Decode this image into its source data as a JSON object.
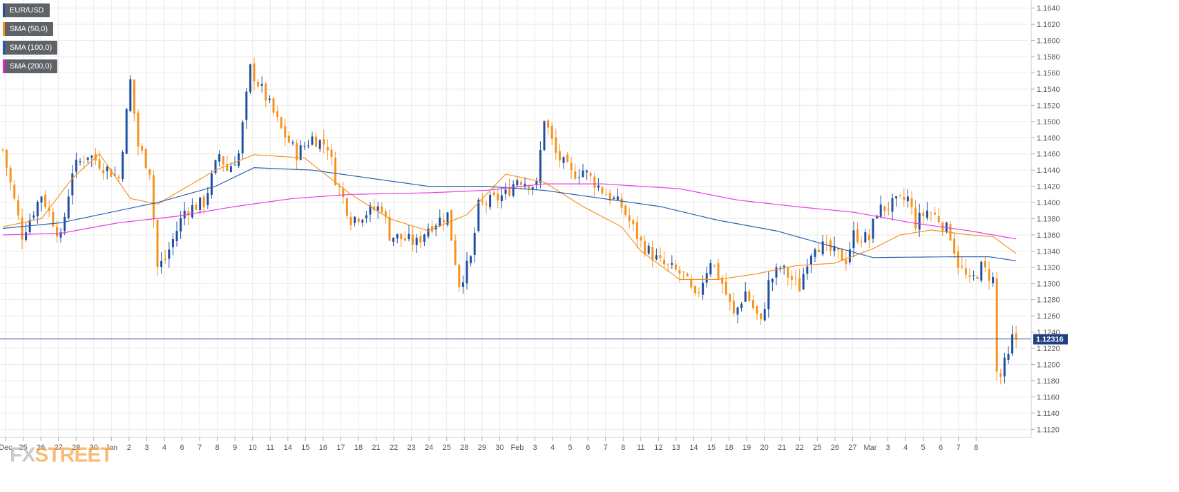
{
  "legend": [
    {
      "label": "EUR/USD",
      "color": "#1e4f99"
    },
    {
      "label": "SMA (50,0)",
      "color": "#f7931e"
    },
    {
      "label": "SMA (100,0)",
      "color": "#1e5bb8"
    },
    {
      "label": "SMA (200,0)",
      "color": "#e61ee6"
    }
  ],
  "watermark": {
    "fx": "FX",
    "rest": "STREET"
  },
  "current_price_label": "1.12316",
  "colors": {
    "bull": "#1f4fa3",
    "bear": "#f5931f",
    "sma50": "#f7931e",
    "sma100": "#2a62b0",
    "sma200": "#e63ee6",
    "price_line": "#1e3f80",
    "grid": "#e9e9e9"
  },
  "chart_data": {
    "type": "candlestick",
    "symbol": "EUR/USD",
    "ylim": [
      1.111,
      1.165
    ],
    "yticks": [
      "1.1120",
      "1.1140",
      "1.1160",
      "1.1180",
      "1.1200",
      "1.1220",
      "1.1240",
      "1.1260",
      "1.1280",
      "1.1300",
      "1.1320",
      "1.1340",
      "1.1360",
      "1.1380",
      "1.1400",
      "1.1420",
      "1.1440",
      "1.1460",
      "1.1480",
      "1.1500",
      "1.1520",
      "1.1540",
      "1.1560",
      "1.1580",
      "1.1600",
      "1.1620",
      "1.1640"
    ],
    "xticks": [
      "Dec",
      "25",
      "26",
      "27",
      "28",
      "30",
      "Jan",
      "2",
      "3",
      "4",
      "6",
      "7",
      "8",
      "9",
      "10",
      "11",
      "14",
      "15",
      "16",
      "17",
      "18",
      "21",
      "22",
      "23",
      "24",
      "25",
      "28",
      "29",
      "30",
      "Feb",
      "3",
      "4",
      "5",
      "6",
      "7",
      "8",
      "11",
      "12",
      "13",
      "14",
      "15",
      "18",
      "19",
      "20",
      "21",
      "22",
      "25",
      "26",
      "27",
      "Mar",
      "3",
      "4",
      "5",
      "6",
      "7",
      "8"
    ],
    "current_price": 1.12316,
    "series": [
      {
        "name": "SMA (50,0)",
        "anchors": [
          [
            0,
            1.137
          ],
          [
            10,
            1.138
          ],
          [
            18,
            1.143
          ],
          [
            25,
            1.146
          ],
          [
            33,
            1.1405
          ],
          [
            40,
            1.1398
          ],
          [
            55,
            1.144
          ],
          [
            65,
            1.1459
          ],
          [
            78,
            1.1455
          ],
          [
            90,
            1.141
          ],
          [
            100,
            1.138
          ],
          [
            110,
            1.1365
          ],
          [
            120,
            1.1385
          ],
          [
            130,
            1.1435
          ],
          [
            140,
            1.1425
          ],
          [
            150,
            1.1395
          ],
          [
            160,
            1.137
          ],
          [
            165,
            1.134
          ],
          [
            175,
            1.1305
          ],
          [
            185,
            1.1305
          ],
          [
            195,
            1.1312
          ],
          [
            205,
            1.1322
          ],
          [
            215,
            1.1325
          ],
          [
            225,
            1.1343
          ],
          [
            232,
            1.136
          ],
          [
            240,
            1.1366
          ],
          [
            250,
            1.136
          ],
          [
            256,
            1.1358
          ],
          [
            262,
            1.1337
          ]
        ]
      },
      {
        "name": "SMA (100,0)",
        "anchors": [
          [
            0,
            1.1368
          ],
          [
            15,
            1.1375
          ],
          [
            30,
            1.139
          ],
          [
            40,
            1.14
          ],
          [
            55,
            1.142
          ],
          [
            65,
            1.1443
          ],
          [
            80,
            1.144
          ],
          [
            95,
            1.143
          ],
          [
            110,
            1.142
          ],
          [
            125,
            1.142
          ],
          [
            140,
            1.1415
          ],
          [
            155,
            1.1405
          ],
          [
            170,
            1.1395
          ],
          [
            185,
            1.1378
          ],
          [
            200,
            1.1365
          ],
          [
            215,
            1.1345
          ],
          [
            225,
            1.1332
          ],
          [
            245,
            1.1333
          ],
          [
            255,
            1.1333
          ],
          [
            262,
            1.1328
          ]
        ]
      },
      {
        "name": "SMA (200,0)",
        "anchors": [
          [
            0,
            1.136
          ],
          [
            15,
            1.1362
          ],
          [
            30,
            1.1375
          ],
          [
            45,
            1.1383
          ],
          [
            60,
            1.1395
          ],
          [
            75,
            1.1405
          ],
          [
            90,
            1.141
          ],
          [
            110,
            1.1412
          ],
          [
            125,
            1.1415
          ],
          [
            140,
            1.1423
          ],
          [
            155,
            1.1423
          ],
          [
            175,
            1.1417
          ],
          [
            190,
            1.1403
          ],
          [
            205,
            1.1395
          ],
          [
            220,
            1.1388
          ],
          [
            235,
            1.1375
          ],
          [
            250,
            1.1365
          ],
          [
            262,
            1.1355
          ]
        ]
      }
    ],
    "price_anchors": [
      [
        0,
        1.1465
      ],
      [
        5,
        1.136
      ],
      [
        10,
        1.141
      ],
      [
        15,
        1.1355
      ],
      [
        18,
        1.144
      ],
      [
        22,
        1.146
      ],
      [
        30,
        1.143
      ],
      [
        33,
        1.155
      ],
      [
        35,
        1.147
      ],
      [
        38,
        1.144
      ],
      [
        40,
        1.132
      ],
      [
        42,
        1.133
      ],
      [
        47,
        1.139
      ],
      [
        52,
        1.14
      ],
      [
        56,
        1.146
      ],
      [
        58,
        1.144
      ],
      [
        61,
        1.146
      ],
      [
        64,
        1.1565
      ],
      [
        68,
        1.153
      ],
      [
        72,
        1.149
      ],
      [
        76,
        1.146
      ],
      [
        80,
        1.148
      ],
      [
        84,
        1.147
      ],
      [
        86,
        1.143
      ],
      [
        90,
        1.138
      ],
      [
        98,
        1.1395
      ],
      [
        100,
        1.136
      ],
      [
        107,
        1.135
      ],
      [
        110,
        1.137
      ],
      [
        115,
        1.1385
      ],
      [
        118,
        1.13
      ],
      [
        121,
        1.133
      ],
      [
        123,
        1.1395
      ],
      [
        130,
        1.141
      ],
      [
        133,
        1.143
      ],
      [
        138,
        1.142
      ],
      [
        140,
        1.1505
      ],
      [
        143,
        1.146
      ],
      [
        147,
        1.1435
      ],
      [
        150,
        1.144
      ],
      [
        155,
        1.1415
      ],
      [
        160,
        1.1395
      ],
      [
        165,
        1.135
      ],
      [
        170,
        1.1325
      ],
      [
        176,
        1.131
      ],
      [
        179,
        1.128
      ],
      [
        183,
        1.133
      ],
      [
        186,
        1.13
      ],
      [
        189,
        1.126
      ],
      [
        192,
        1.129
      ],
      [
        196,
        1.125
      ],
      [
        198,
        1.13
      ],
      [
        201,
        1.132
      ],
      [
        206,
        1.1295
      ],
      [
        208,
        1.133
      ],
      [
        210,
        1.135
      ],
      [
        214,
        1.134
      ],
      [
        218,
        1.133
      ],
      [
        220,
        1.136
      ],
      [
        224,
        1.1355
      ],
      [
        226,
        1.139
      ],
      [
        229,
        1.1395
      ],
      [
        234,
        1.1405
      ],
      [
        236,
        1.1375
      ],
      [
        239,
        1.139
      ],
      [
        242,
        1.138
      ],
      [
        245,
        1.136
      ],
      [
        247,
        1.1325
      ],
      [
        250,
        1.13
      ],
      [
        253,
        1.132
      ],
      [
        256,
        1.1305
      ],
      [
        257,
        1.119
      ],
      [
        258,
        1.1185
      ],
      [
        259,
        1.12
      ],
      [
        260,
        1.1208
      ],
      [
        261,
        1.1232
      ]
    ]
  }
}
